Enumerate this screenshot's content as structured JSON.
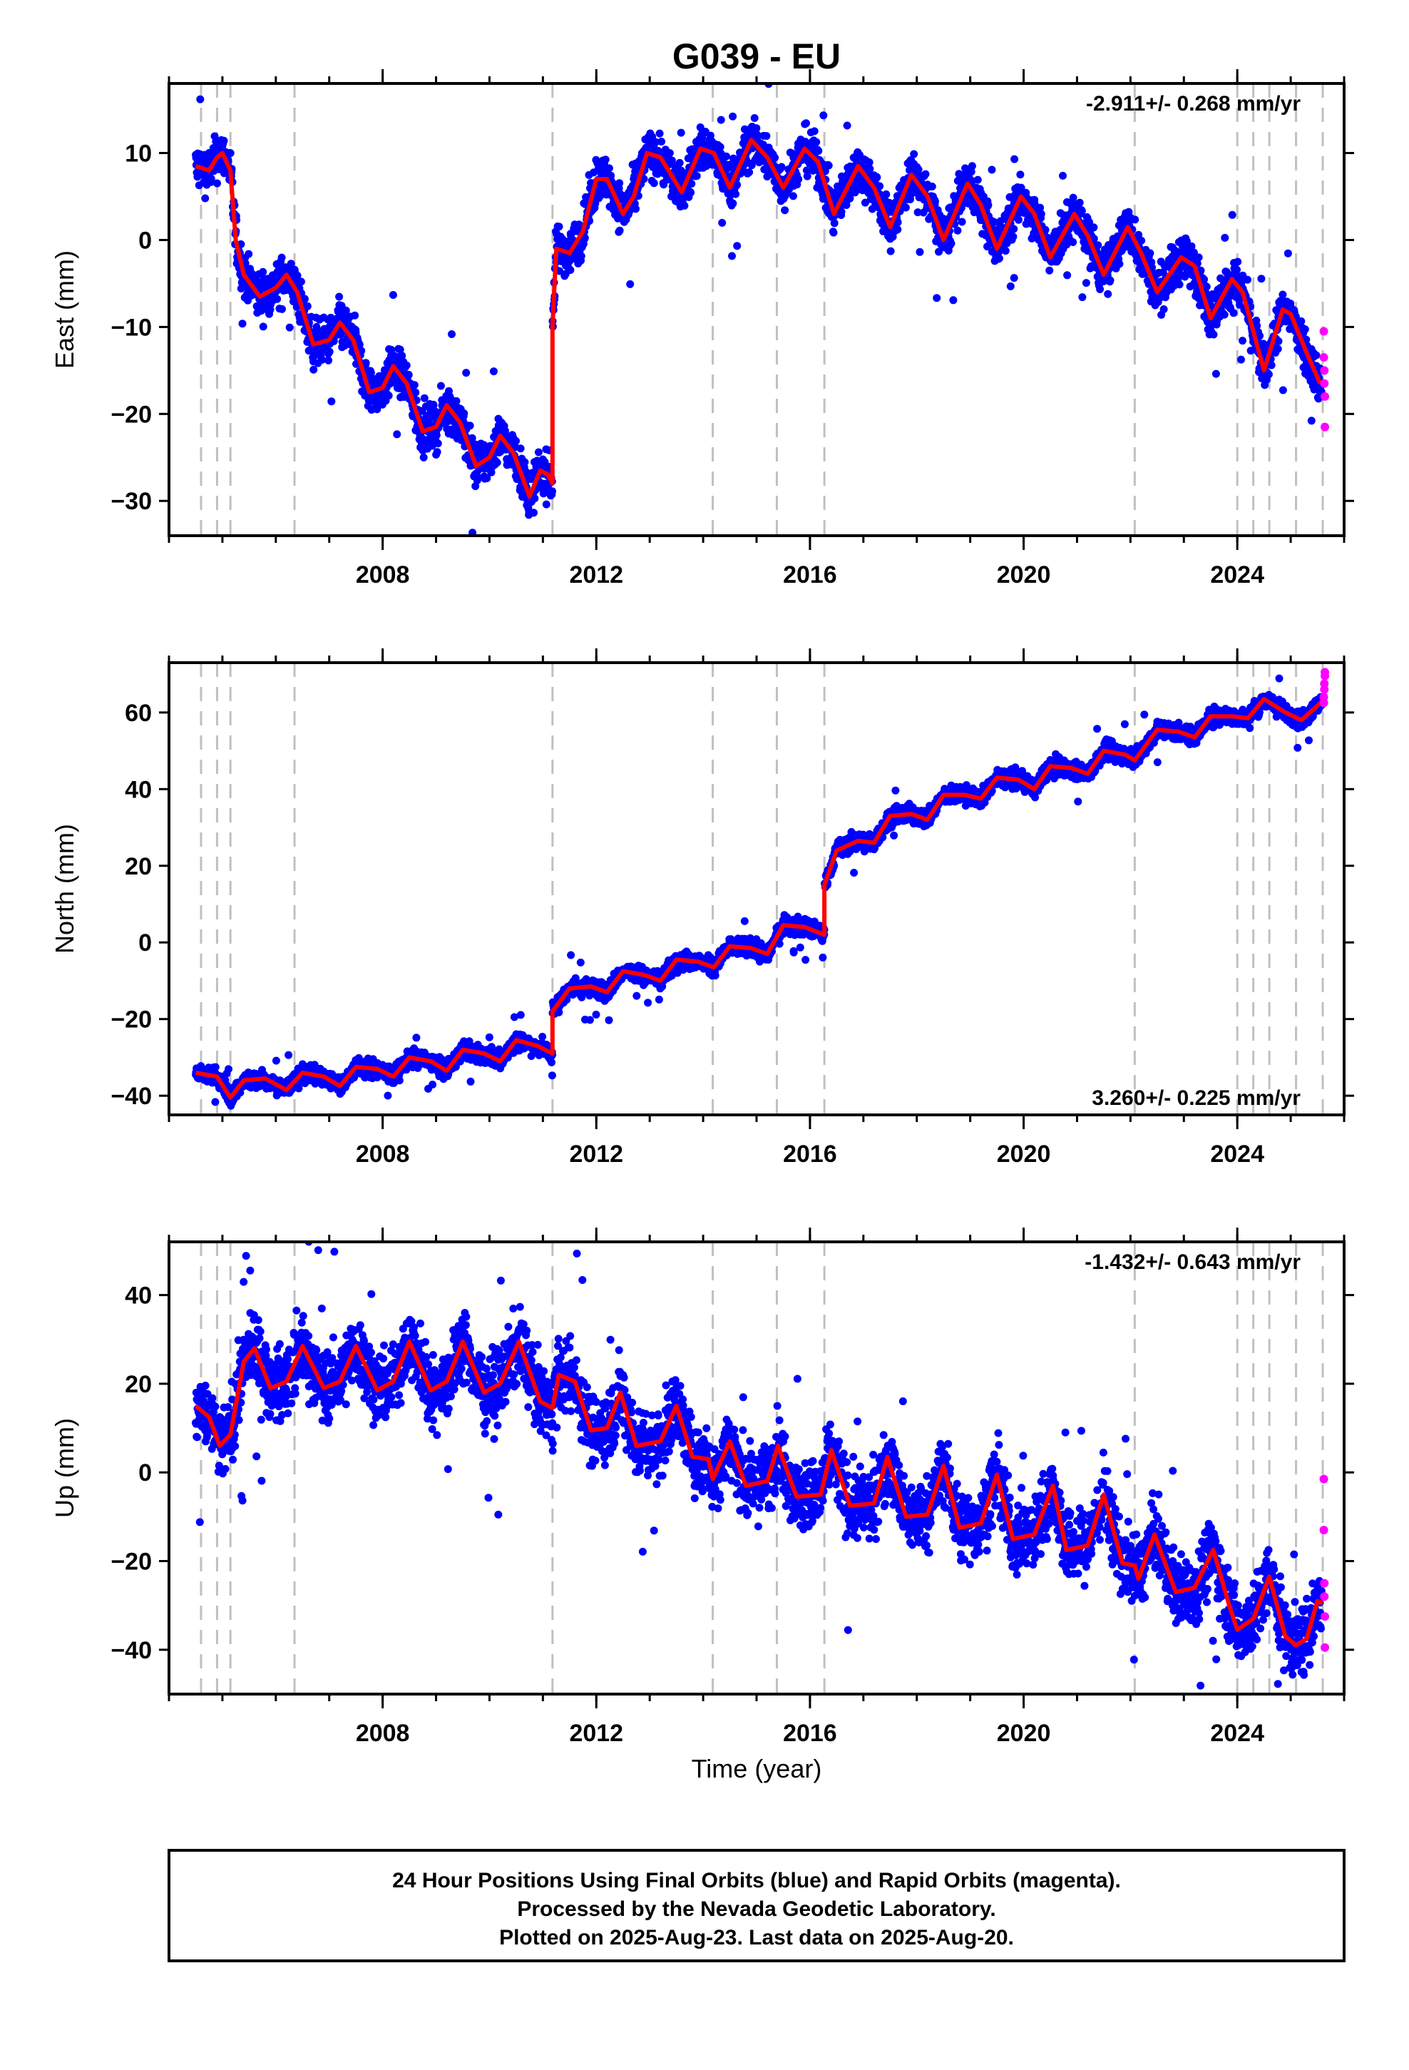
{
  "chart_data": {
    "type": "scatter",
    "title": "G039 - EU",
    "xlabel": "Time (year)",
    "xlim": [
      2004.0,
      2026.0
    ],
    "x_ticks": [
      2008,
      2012,
      2016,
      2020,
      2024
    ],
    "x_minor_ticks": [
      2004,
      2005,
      2006,
      2007,
      2008,
      2009,
      2010,
      2011,
      2012,
      2013,
      2014,
      2015,
      2016,
      2017,
      2018,
      2019,
      2020,
      2021,
      2022,
      2023,
      2024,
      2025,
      2026
    ],
    "vertical_dashed_lines_at": [
      2004.6,
      2004.9,
      2005.15,
      2006.35,
      2011.18,
      2014.18,
      2015.38,
      2016.27,
      2022.08,
      2024.0,
      2024.3,
      2024.6,
      2025.1,
      2025.6
    ],
    "colors": {
      "final_orbits": "#0000ff",
      "rapid_orbits": "#ff00ff",
      "model": "#ff0000",
      "event_lines": "#c0c0c0"
    },
    "panels": [
      {
        "id": "east",
        "ylabel": "East (mm)",
        "ylim": [
          -34,
          18
        ],
        "y_ticks": [
          10,
          0,
          -10,
          -20,
          -30
        ],
        "rate_label": "-2.911+/- 0.268 mm/yr",
        "rate_position": "top-right",
        "model_curve": {
          "name": "model",
          "points": [
            [
              2004.5,
              8.5
            ],
            [
              2004.75,
              8.0
            ],
            [
              2004.9,
              9.5
            ],
            [
              2005.0,
              10.0
            ],
            [
              2005.15,
              8.0
            ],
            [
              2005.25,
              0.0
            ],
            [
              2005.4,
              -4.0
            ],
            [
              2005.7,
              -6.5
            ],
            [
              2006.0,
              -5.5
            ],
            [
              2006.2,
              -4.0
            ],
            [
              2006.4,
              -6.0
            ],
            [
              2006.7,
              -12.0
            ],
            [
              2007.0,
              -11.5
            ],
            [
              2007.2,
              -9.5
            ],
            [
              2007.45,
              -11.5
            ],
            [
              2007.75,
              -17.5
            ],
            [
              2008.0,
              -17.0
            ],
            [
              2008.2,
              -14.5
            ],
            [
              2008.45,
              -16.5
            ],
            [
              2008.75,
              -22.0
            ],
            [
              2009.0,
              -21.5
            ],
            [
              2009.2,
              -19.0
            ],
            [
              2009.45,
              -21.0
            ],
            [
              2009.75,
              -26.0
            ],
            [
              2010.0,
              -25.0
            ],
            [
              2010.2,
              -22.5
            ],
            [
              2010.45,
              -24.5
            ],
            [
              2010.75,
              -29.5
            ],
            [
              2010.95,
              -26.5
            ],
            [
              2011.1,
              -27.0
            ],
            [
              2011.18,
              -28.0
            ],
            [
              2011.18,
              -10.0
            ],
            [
              2011.25,
              -1.0
            ],
            [
              2011.5,
              -1.5
            ],
            [
              2011.75,
              1.0
            ],
            [
              2012.0,
              7.0
            ],
            [
              2012.2,
              7.0
            ],
            [
              2012.5,
              3.0
            ],
            [
              2012.7,
              5.0
            ],
            [
              2012.95,
              10.0
            ],
            [
              2013.2,
              9.5
            ],
            [
              2013.6,
              5.5
            ],
            [
              2013.95,
              10.5
            ],
            [
              2014.2,
              10.0
            ],
            [
              2014.5,
              6.0
            ],
            [
              2014.9,
              11.5
            ],
            [
              2015.2,
              9.5
            ],
            [
              2015.5,
              6.0
            ],
            [
              2015.9,
              10.5
            ],
            [
              2016.15,
              9.0
            ],
            [
              2016.45,
              3.0
            ],
            [
              2016.9,
              8.5
            ],
            [
              2017.2,
              6.0
            ],
            [
              2017.5,
              1.5
            ],
            [
              2017.9,
              7.5
            ],
            [
              2018.2,
              5.0
            ],
            [
              2018.5,
              0.0
            ],
            [
              2018.95,
              6.5
            ],
            [
              2019.2,
              4.0
            ],
            [
              2019.5,
              -1.0
            ],
            [
              2019.95,
              5.0
            ],
            [
              2020.2,
              3.0
            ],
            [
              2020.5,
              -2.0
            ],
            [
              2020.95,
              3.0
            ],
            [
              2021.2,
              0.5
            ],
            [
              2021.5,
              -4.0
            ],
            [
              2021.95,
              1.5
            ],
            [
              2022.2,
              -1.5
            ],
            [
              2022.5,
              -6.0
            ],
            [
              2022.95,
              -2.0
            ],
            [
              2023.2,
              -3.0
            ],
            [
              2023.5,
              -9.0
            ],
            [
              2023.9,
              -4.5
            ],
            [
              2024.1,
              -6.0
            ],
            [
              2024.5,
              -15.0
            ],
            [
              2024.85,
              -8.0
            ],
            [
              2025.0,
              -8.5
            ],
            [
              2025.3,
              -13.0
            ],
            [
              2025.55,
              -16.5
            ]
          ]
        },
        "rapid_points": [
          [
            2025.62,
            -10.5
          ],
          [
            2025.62,
            -13.5
          ],
          [
            2025.63,
            -15.0
          ],
          [
            2025.63,
            -16.5
          ],
          [
            2025.64,
            -18.0
          ],
          [
            2025.64,
            -21.5
          ]
        ]
      },
      {
        "id": "north",
        "ylabel": "North (mm)",
        "ylim": [
          -45,
          73
        ],
        "y_ticks": [
          60,
          40,
          20,
          0,
          -20,
          -40
        ],
        "rate_label": "3.260+/- 0.225 mm/yr",
        "rate_position": "bottom-right",
        "model_curve": {
          "name": "model",
          "points": [
            [
              2004.5,
              -34.0
            ],
            [
              2004.9,
              -35.0
            ],
            [
              2005.15,
              -40.5
            ],
            [
              2005.4,
              -36.0
            ],
            [
              2005.8,
              -35.5
            ],
            [
              2006.2,
              -38.5
            ],
            [
              2006.5,
              -34.0
            ],
            [
              2006.9,
              -35.0
            ],
            [
              2007.2,
              -37.5
            ],
            [
              2007.5,
              -32.5
            ],
            [
              2007.9,
              -33.0
            ],
            [
              2008.2,
              -35.0
            ],
            [
              2008.5,
              -30.0
            ],
            [
              2008.9,
              -31.0
            ],
            [
              2009.2,
              -33.5
            ],
            [
              2009.5,
              -28.0
            ],
            [
              2009.9,
              -29.0
            ],
            [
              2010.2,
              -31.0
            ],
            [
              2010.5,
              -25.5
            ],
            [
              2010.9,
              -27.0
            ],
            [
              2011.18,
              -29.0
            ],
            [
              2011.18,
              -18.0
            ],
            [
              2011.5,
              -12.0
            ],
            [
              2011.9,
              -11.5
            ],
            [
              2012.2,
              -13.0
            ],
            [
              2012.5,
              -7.5
            ],
            [
              2012.9,
              -8.5
            ],
            [
              2013.2,
              -10.0
            ],
            [
              2013.5,
              -4.5
            ],
            [
              2013.9,
              -5.0
            ],
            [
              2014.2,
              -6.5
            ],
            [
              2014.5,
              -1.0
            ],
            [
              2014.9,
              -1.5
            ],
            [
              2015.2,
              -3.0
            ],
            [
              2015.5,
              4.5
            ],
            [
              2015.9,
              4.0
            ],
            [
              2016.27,
              2.0
            ],
            [
              2016.27,
              15.0
            ],
            [
              2016.5,
              24.0
            ],
            [
              2016.9,
              26.5
            ],
            [
              2017.2,
              26.0
            ],
            [
              2017.5,
              33.0
            ],
            [
              2017.9,
              33.5
            ],
            [
              2018.2,
              32.0
            ],
            [
              2018.5,
              38.5
            ],
            [
              2018.9,
              38.5
            ],
            [
              2019.2,
              37.5
            ],
            [
              2019.5,
              43.0
            ],
            [
              2019.9,
              42.5
            ],
            [
              2020.2,
              40.0
            ],
            [
              2020.5,
              46.0
            ],
            [
              2020.9,
              45.5
            ],
            [
              2021.2,
              44.0
            ],
            [
              2021.5,
              50.0
            ],
            [
              2021.9,
              49.0
            ],
            [
              2022.08,
              47.5
            ],
            [
              2022.5,
              55.5
            ],
            [
              2022.9,
              55.0
            ],
            [
              2023.2,
              53.5
            ],
            [
              2023.5,
              59.0
            ],
            [
              2023.9,
              59.0
            ],
            [
              2024.2,
              58.5
            ],
            [
              2024.5,
              63.5
            ],
            [
              2024.9,
              60.0
            ],
            [
              2025.2,
              58.0
            ],
            [
              2025.6,
              63.0
            ]
          ]
        },
        "rapid_points": [
          [
            2025.62,
            62.5
          ],
          [
            2025.62,
            64.0
          ],
          [
            2025.63,
            66.0
          ],
          [
            2025.63,
            67.5
          ],
          [
            2025.64,
            69.5
          ],
          [
            2025.64,
            70.5
          ]
        ]
      },
      {
        "id": "up",
        "ylabel": "Up (mm)",
        "ylim": [
          -50,
          52
        ],
        "y_ticks": [
          40,
          20,
          0,
          -20,
          -40
        ],
        "rate_label": "-1.432+/- 0.643 mm/yr",
        "rate_position": "top-right",
        "model_curve": {
          "name": "model",
          "points": [
            [
              2004.5,
              15.0
            ],
            [
              2004.75,
              12.5
            ],
            [
              2004.95,
              6.0
            ],
            [
              2005.15,
              8.5
            ],
            [
              2005.4,
              25.0
            ],
            [
              2005.6,
              28.0
            ],
            [
              2005.9,
              19.0
            ],
            [
              2006.2,
              20.5
            ],
            [
              2006.5,
              28.5
            ],
            [
              2006.9,
              19.0
            ],
            [
              2007.2,
              20.5
            ],
            [
              2007.5,
              28.5
            ],
            [
              2007.9,
              18.5
            ],
            [
              2008.2,
              20.5
            ],
            [
              2008.5,
              29.5
            ],
            [
              2008.9,
              18.5
            ],
            [
              2009.2,
              20.5
            ],
            [
              2009.5,
              29.5
            ],
            [
              2009.9,
              18.0
            ],
            [
              2010.2,
              20.0
            ],
            [
              2010.55,
              29.5
            ],
            [
              2010.95,
              16.0
            ],
            [
              2011.18,
              14.5
            ],
            [
              2011.3,
              22.0
            ],
            [
              2011.6,
              20.5
            ],
            [
              2011.9,
              9.5
            ],
            [
              2012.2,
              10.0
            ],
            [
              2012.45,
              18.0
            ],
            [
              2012.75,
              6.0
            ],
            [
              2013.2,
              7.0
            ],
            [
              2013.5,
              15.0
            ],
            [
              2013.8,
              3.5
            ],
            [
              2014.1,
              3.0
            ],
            [
              2014.18,
              -1.5
            ],
            [
              2014.5,
              7.0
            ],
            [
              2014.8,
              -3.0
            ],
            [
              2015.2,
              -2.0
            ],
            [
              2015.4,
              6.0
            ],
            [
              2015.75,
              -5.5
            ],
            [
              2016.2,
              -5.0
            ],
            [
              2016.4,
              5.0
            ],
            [
              2016.75,
              -7.5
            ],
            [
              2017.2,
              -7.0
            ],
            [
              2017.45,
              3.5
            ],
            [
              2017.8,
              -10.0
            ],
            [
              2018.2,
              -9.5
            ],
            [
              2018.5,
              1.5
            ],
            [
              2018.8,
              -12.5
            ],
            [
              2019.2,
              -11.5
            ],
            [
              2019.5,
              -0.5
            ],
            [
              2019.8,
              -15.0
            ],
            [
              2020.2,
              -14.0
            ],
            [
              2020.55,
              -3.0
            ],
            [
              2020.8,
              -17.5
            ],
            [
              2021.2,
              -16.5
            ],
            [
              2021.5,
              -5.0
            ],
            [
              2021.85,
              -20.5
            ],
            [
              2022.08,
              -21.0
            ],
            [
              2022.15,
              -24.0
            ],
            [
              2022.45,
              -14.0
            ],
            [
              2022.85,
              -27.0
            ],
            [
              2023.2,
              -26.0
            ],
            [
              2023.55,
              -17.5
            ],
            [
              2023.85,
              -30.0
            ],
            [
              2024.0,
              -35.5
            ],
            [
              2024.3,
              -33.0
            ],
            [
              2024.6,
              -23.5
            ],
            [
              2024.9,
              -37.0
            ],
            [
              2025.1,
              -39.0
            ],
            [
              2025.3,
              -37.5
            ],
            [
              2025.5,
              -29.0
            ],
            [
              2025.6,
              -29.5
            ]
          ]
        },
        "rapid_points": [
          [
            2025.62,
            -1.5
          ],
          [
            2025.62,
            -13.0
          ],
          [
            2025.63,
            -25.0
          ],
          [
            2025.63,
            -28.0
          ],
          [
            2025.64,
            -32.5
          ],
          [
            2025.64,
            -39.5
          ]
        ]
      }
    ],
    "footer_lines": [
      "24 Hour Positions Using Final Orbits (blue) and Rapid Orbits (magenta).",
      "Processed by the Nevada Geodetic Laboratory.",
      "Plotted on 2025-Aug-23. Last data on 2025-Aug-20."
    ]
  }
}
